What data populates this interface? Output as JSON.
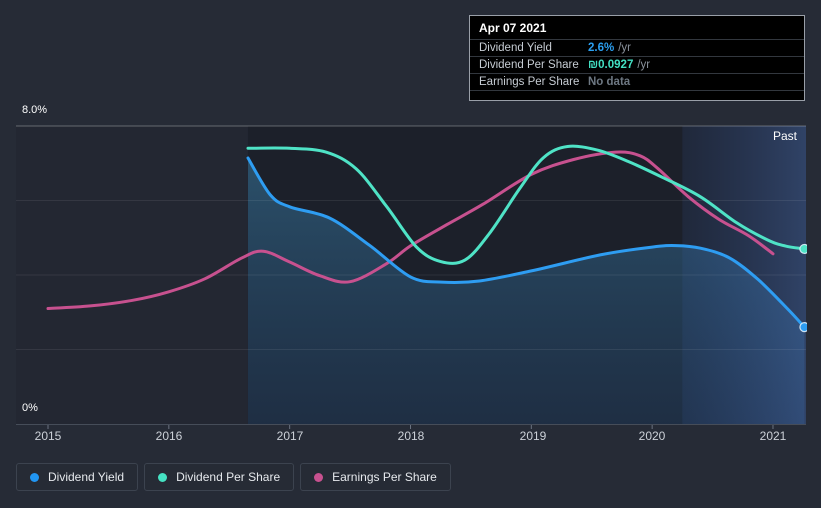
{
  "page": {
    "background": "#262b36"
  },
  "tooltip": {
    "date": "Apr 07 2021",
    "rows": [
      {
        "label": "Dividend Yield",
        "value": "2.6%",
        "suffix": "/yr",
        "color": "#2b9ff0"
      },
      {
        "label": "Dividend Per Share",
        "value": "₪0.0927",
        "suffix": "/yr",
        "color": "#43e0c3"
      },
      {
        "label": "Earnings Per Share",
        "value": "No data",
        "suffix": "",
        "color": "#6e7883"
      }
    ]
  },
  "legend": [
    {
      "label": "Dividend Yield",
      "color": "#2196f3"
    },
    {
      "label": "Dividend Per Share",
      "color": "#45e2c3"
    },
    {
      "label": "Earnings Per Share",
      "color": "#c7518f"
    }
  ],
  "chart_data": {
    "type": "line",
    "title": "Dividend history chart with past-year highlight",
    "x_axis": {
      "tick_labels": [
        "2015",
        "2016",
        "2017",
        "2018",
        "2019",
        "2020",
        "2021"
      ],
      "tick_years": [
        2015,
        2016,
        2017,
        2018,
        2019,
        2020,
        2021
      ],
      "range": [
        2014.73,
        2021.29
      ]
    },
    "y_axis": {
      "top_label": "8.0%",
      "bottom_label": "0%",
      "range_pct": [
        0,
        8
      ],
      "gridlines_pct": [
        2,
        4,
        6,
        8
      ]
    },
    "bands": {
      "data_start_year": 2016.655,
      "past_start_year": 2020.25,
      "past_label": "Past"
    },
    "series": [
      {
        "name": "Dividend Yield",
        "color": "#2e9df2",
        "unit": "% per year",
        "value_at_cursor": "2.6% /yr",
        "area_fill": true,
        "end_dot": true,
        "points": [
          [
            2016.655,
            7.14
          ],
          [
            2016.84,
            6.15
          ],
          [
            2017.0,
            5.83
          ],
          [
            2017.33,
            5.53
          ],
          [
            2017.66,
            4.8
          ],
          [
            2018.0,
            3.95
          ],
          [
            2018.26,
            3.81
          ],
          [
            2018.57,
            3.84
          ],
          [
            2019.0,
            4.11
          ],
          [
            2019.57,
            4.54
          ],
          [
            2020.0,
            4.75
          ],
          [
            2020.2,
            4.79
          ],
          [
            2020.4,
            4.72
          ],
          [
            2020.64,
            4.46
          ],
          [
            2020.88,
            3.87
          ],
          [
            2021.13,
            3.06
          ],
          [
            2021.26,
            2.6
          ]
        ]
      },
      {
        "name": "Dividend Per Share",
        "color": "#4fe3c6",
        "unit": "₪ per year (drawn scaled onto yield axis)",
        "value_at_cursor": "₪0.0927 /yr",
        "area_fill": false,
        "end_dot": true,
        "points": [
          [
            2016.655,
            7.4
          ],
          [
            2017.0,
            7.4
          ],
          [
            2017.3,
            7.3
          ],
          [
            2017.55,
            6.85
          ],
          [
            2017.8,
            5.85
          ],
          [
            2018.05,
            4.75
          ],
          [
            2018.25,
            4.36
          ],
          [
            2018.45,
            4.4
          ],
          [
            2018.65,
            5.1
          ],
          [
            2018.9,
            6.3
          ],
          [
            2019.1,
            7.15
          ],
          [
            2019.3,
            7.45
          ],
          [
            2019.55,
            7.35
          ],
          [
            2019.8,
            7.05
          ],
          [
            2020.1,
            6.6
          ],
          [
            2020.4,
            6.1
          ],
          [
            2020.7,
            5.4
          ],
          [
            2020.95,
            4.95
          ],
          [
            2021.1,
            4.78
          ],
          [
            2021.26,
            4.7
          ]
        ]
      },
      {
        "name": "Earnings Per Share",
        "color": "#c7518f",
        "unit": "₪ per year (drawn scaled onto yield axis)",
        "value_at_cursor": "No data",
        "area_fill": false,
        "end_dot": false,
        "points": [
          [
            2015.0,
            3.1
          ],
          [
            2015.35,
            3.17
          ],
          [
            2015.7,
            3.32
          ],
          [
            2016.0,
            3.55
          ],
          [
            2016.3,
            3.9
          ],
          [
            2016.6,
            4.45
          ],
          [
            2016.78,
            4.64
          ],
          [
            2017.0,
            4.35
          ],
          [
            2017.25,
            3.98
          ],
          [
            2017.5,
            3.82
          ],
          [
            2017.8,
            4.3
          ],
          [
            2018.0,
            4.78
          ],
          [
            2018.3,
            5.35
          ],
          [
            2018.6,
            5.9
          ],
          [
            2019.0,
            6.7
          ],
          [
            2019.35,
            7.1
          ],
          [
            2019.7,
            7.3
          ],
          [
            2019.9,
            7.2
          ],
          [
            2020.05,
            6.85
          ],
          [
            2020.3,
            6.1
          ],
          [
            2020.55,
            5.5
          ],
          [
            2020.8,
            5.05
          ],
          [
            2021.0,
            4.57
          ]
        ]
      }
    ]
  }
}
